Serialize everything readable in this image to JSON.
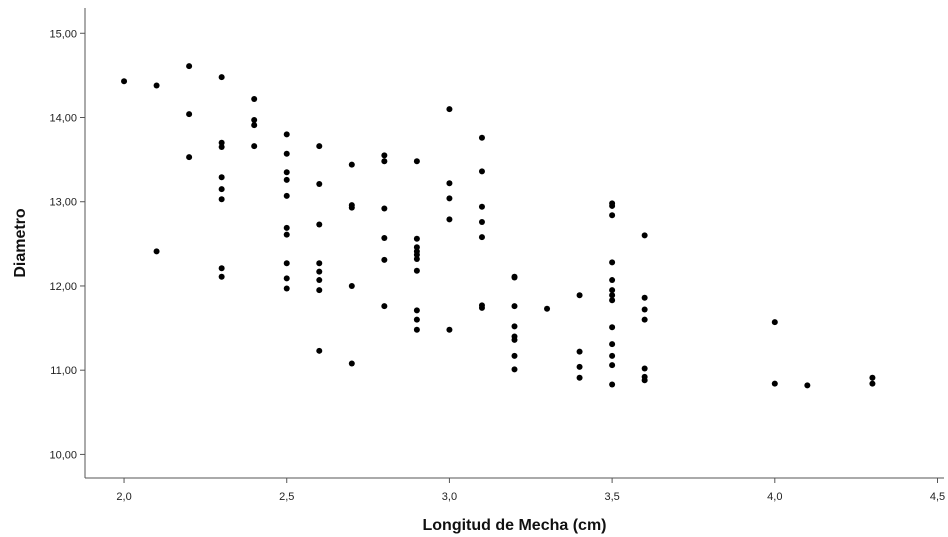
{
  "chart_data": {
    "type": "scatter",
    "title": "",
    "xlabel": "Longitud de Mecha (cm)",
    "ylabel": "Diametro",
    "xlim": [
      1.88,
      4.52
    ],
    "ylim": [
      9.72,
      15.3
    ],
    "x_ticks": [
      "2,0",
      "2,5",
      "3,0",
      "3,5",
      "4,0",
      "4,5"
    ],
    "x_tick_values": [
      2.0,
      2.5,
      3.0,
      3.5,
      4.0,
      4.5
    ],
    "y_ticks": [
      "10,00",
      "11,00",
      "12,00",
      "13,00",
      "14,00",
      "15,00"
    ],
    "y_tick_values": [
      10,
      11,
      12,
      13,
      14,
      15
    ],
    "grid": false,
    "marker_color": "#000000",
    "points": [
      [
        2.0,
        14.43
      ],
      [
        2.1,
        14.38
      ],
      [
        2.1,
        12.41
      ],
      [
        2.2,
        14.61
      ],
      [
        2.2,
        14.04
      ],
      [
        2.2,
        13.53
      ],
      [
        2.3,
        14.48
      ],
      [
        2.3,
        13.7
      ],
      [
        2.3,
        13.65
      ],
      [
        2.3,
        13.29
      ],
      [
        2.3,
        13.15
      ],
      [
        2.3,
        13.03
      ],
      [
        2.3,
        12.21
      ],
      [
        2.3,
        12.11
      ],
      [
        2.4,
        14.22
      ],
      [
        2.4,
        13.97
      ],
      [
        2.4,
        13.91
      ],
      [
        2.4,
        13.66
      ],
      [
        2.5,
        13.8
      ],
      [
        2.5,
        13.57
      ],
      [
        2.5,
        13.35
      ],
      [
        2.5,
        13.26
      ],
      [
        2.5,
        13.07
      ],
      [
        2.5,
        12.69
      ],
      [
        2.5,
        12.61
      ],
      [
        2.5,
        12.27
      ],
      [
        2.5,
        12.09
      ],
      [
        2.5,
        11.97
      ],
      [
        2.6,
        13.66
      ],
      [
        2.6,
        13.21
      ],
      [
        2.6,
        12.73
      ],
      [
        2.6,
        12.27
      ],
      [
        2.6,
        12.17
      ],
      [
        2.6,
        12.07
      ],
      [
        2.6,
        11.95
      ],
      [
        2.6,
        11.23
      ],
      [
        2.7,
        13.44
      ],
      [
        2.7,
        12.96
      ],
      [
        2.7,
        12.93
      ],
      [
        2.7,
        12.0
      ],
      [
        2.7,
        11.08
      ],
      [
        2.8,
        13.55
      ],
      [
        2.8,
        13.48
      ],
      [
        2.8,
        12.92
      ],
      [
        2.8,
        12.57
      ],
      [
        2.8,
        12.31
      ],
      [
        2.8,
        11.76
      ],
      [
        2.9,
        13.48
      ],
      [
        2.9,
        12.56
      ],
      [
        2.9,
        12.46
      ],
      [
        2.9,
        12.41
      ],
      [
        2.9,
        12.37
      ],
      [
        2.9,
        12.32
      ],
      [
        2.9,
        12.18
      ],
      [
        2.9,
        11.71
      ],
      [
        2.9,
        11.6
      ],
      [
        2.9,
        11.48
      ],
      [
        3.0,
        14.1
      ],
      [
        3.0,
        13.22
      ],
      [
        3.0,
        13.04
      ],
      [
        3.0,
        12.79
      ],
      [
        3.0,
        11.48
      ],
      [
        3.1,
        13.76
      ],
      [
        3.1,
        13.36
      ],
      [
        3.1,
        12.94
      ],
      [
        3.1,
        12.76
      ],
      [
        3.1,
        12.58
      ],
      [
        3.1,
        11.77
      ],
      [
        3.1,
        11.74
      ],
      [
        3.2,
        12.11
      ],
      [
        3.2,
        12.1
      ],
      [
        3.2,
        11.76
      ],
      [
        3.2,
        11.52
      ],
      [
        3.2,
        11.4
      ],
      [
        3.2,
        11.36
      ],
      [
        3.2,
        11.17
      ],
      [
        3.2,
        11.01
      ],
      [
        3.3,
        11.73
      ],
      [
        3.4,
        11.89
      ],
      [
        3.4,
        11.22
      ],
      [
        3.4,
        11.04
      ],
      [
        3.4,
        10.91
      ],
      [
        3.5,
        12.98
      ],
      [
        3.5,
        12.95
      ],
      [
        3.5,
        12.84
      ],
      [
        3.5,
        12.28
      ],
      [
        3.5,
        12.07
      ],
      [
        3.5,
        11.95
      ],
      [
        3.5,
        11.89
      ],
      [
        3.5,
        11.83
      ],
      [
        3.5,
        11.51
      ],
      [
        3.5,
        11.31
      ],
      [
        3.5,
        11.17
      ],
      [
        3.5,
        11.06
      ],
      [
        3.5,
        10.83
      ],
      [
        3.6,
        12.6
      ],
      [
        3.6,
        11.86
      ],
      [
        3.6,
        11.72
      ],
      [
        3.6,
        11.6
      ],
      [
        3.6,
        11.02
      ],
      [
        3.6,
        10.92
      ],
      [
        3.6,
        10.88
      ],
      [
        4.0,
        11.57
      ],
      [
        4.0,
        10.84
      ],
      [
        4.1,
        10.82
      ],
      [
        4.3,
        10.91
      ],
      [
        4.3,
        10.84
      ]
    ]
  }
}
